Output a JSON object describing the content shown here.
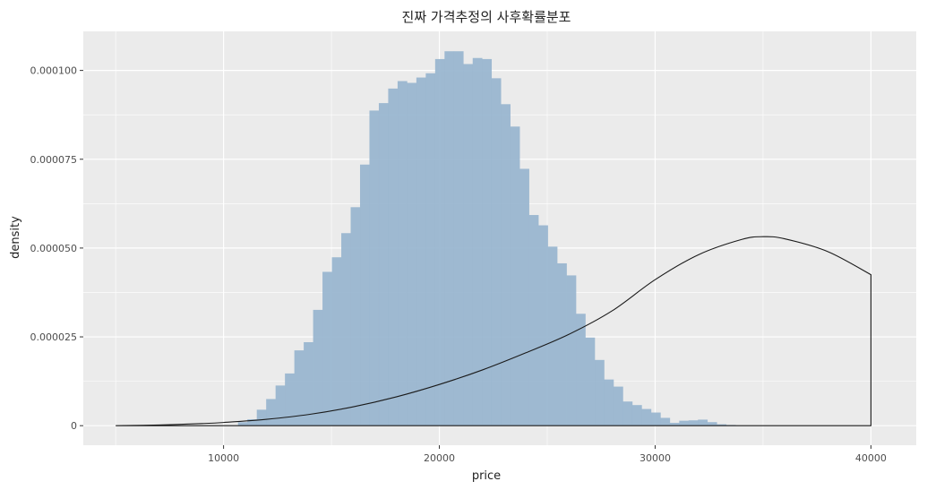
{
  "chart_data": {
    "type": "histogram",
    "title": "진짜 가격추정의 사후확률분포",
    "xlabel": "price",
    "ylabel": "density",
    "xlim": [
      3500,
      42100
    ],
    "ylim": [
      -5.5e-06,
      0.000111
    ],
    "x_ticks": [
      10000,
      20000,
      30000,
      40000
    ],
    "x_tick_labels": [
      "10000",
      "20000",
      "30000",
      "40000"
    ],
    "y_ticks": [
      0,
      2.5e-05,
      5e-05,
      7.5e-05,
      0.0001
    ],
    "y_tick_labels": [
      "0",
      "0.000025",
      "0.000050",
      "0.000075",
      "0.000100"
    ],
    "grid": true,
    "colors": {
      "panel": "#ebebeb",
      "grid": "#ffffff",
      "bars": "#9ab6d0",
      "line": "#1a1a1a"
    },
    "histogram": {
      "bin_width": 435,
      "bin_start": 10670,
      "densities": [
        1e-06,
        1.8e-06,
        4.5e-06,
        7.5e-06,
        1.13e-05,
        1.47e-05,
        2.12e-05,
        2.35e-05,
        3.26e-05,
        4.33e-05,
        4.74e-05,
        5.42e-05,
        6.15e-05,
        7.35e-05,
        8.87e-05,
        9.08e-05,
        9.49e-05,
        9.7e-05,
        9.65e-05,
        9.8e-05,
        9.92e-05,
        0.0001032,
        0.0001054,
        0.0001054,
        0.0001018,
        0.0001035,
        0.0001032,
        9.78e-05,
        9.05e-05,
        8.42e-05,
        7.23e-05,
        5.93e-05,
        5.64e-05,
        5.04e-05,
        4.57e-05,
        4.23e-05,
        3.15e-05,
        2.48e-05,
        1.85e-05,
        1.3e-05,
        1.1e-05,
        6.8e-06,
        5.8e-06,
        4.7e-06,
        3.7e-06,
        2.2e-06,
        8e-07,
        1.4e-06,
        1.5e-06,
        1.7e-06,
        1e-06,
        4e-07,
        2e-07
      ]
    },
    "curve": {
      "name": "",
      "x": [
        5000,
        7000,
        9000,
        10000,
        12000,
        14000,
        16000,
        18000,
        20000,
        22000,
        24000,
        26000,
        28000,
        30000,
        32000,
        34000,
        35000,
        36000,
        38000,
        40000
      ],
      "y": [
        0.0,
        2e-07,
        6e-07,
        9e-07,
        1.8e-06,
        3.2e-06,
        5.3e-06,
        8.1e-06,
        1.16e-05,
        1.57e-05,
        2.05e-05,
        2.57e-05,
        3.23e-05,
        4.11e-05,
        4.81e-05,
        5.24e-05,
        5.32e-05,
        5.26e-05,
        4.9e-05,
        4.25e-05
      ]
    }
  }
}
